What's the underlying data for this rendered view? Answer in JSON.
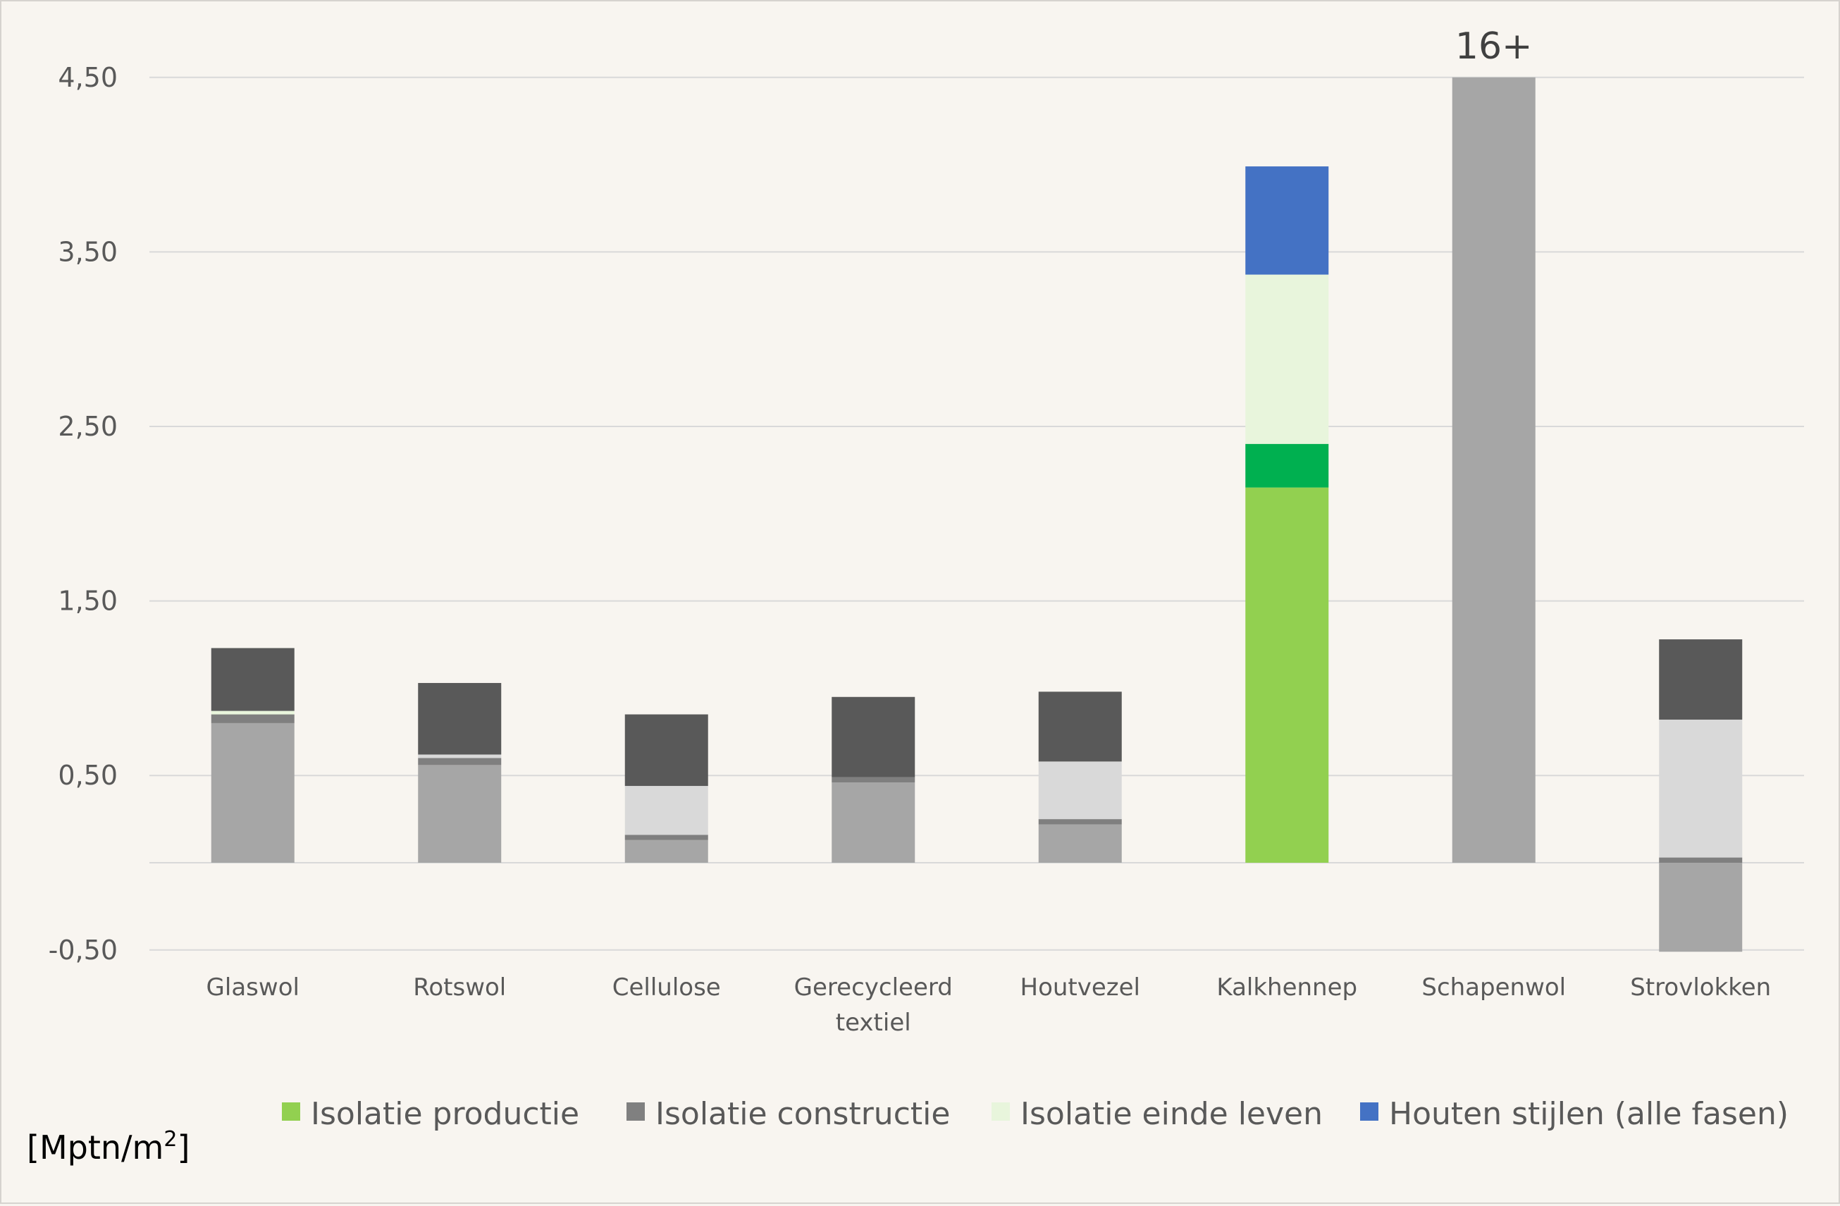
{
  "chart_data": {
    "type": "bar",
    "stacked": true,
    "unit_label": "[Mptn/m",
    "unit_superscript": "2",
    "unit_close": "]",
    "ylim": [
      -0.5,
      4.5
    ],
    "yticks": [
      "4,50",
      "3,50",
      "2,50",
      "1,50",
      "0,50",
      "-0,50"
    ],
    "ytick_values": [
      4.5,
      3.5,
      2.5,
      1.5,
      0.5,
      -0.5
    ],
    "grid": true,
    "legend_position": "bottom",
    "categories": [
      "Glaswol",
      "Rotswol",
      "Cellulose",
      "Gerecycleerd textiel",
      "Houtvezel",
      "Kalkhennep",
      "Schapenwol",
      "Strovlokken"
    ],
    "category_lines": [
      [
        "Glaswol"
      ],
      [
        "Rotswol"
      ],
      [
        "Cellulose"
      ],
      [
        "Gerecycleerd",
        "textiel"
      ],
      [
        "Houtvezel"
      ],
      [
        "Kalkhennep"
      ],
      [
        "Schapenwol"
      ],
      [
        "Strovlokken"
      ]
    ],
    "stacks": [
      [
        {
          "color": "#a6a6a6",
          "value": 0.8
        },
        {
          "color": "#7f7f7f",
          "value": 0.05
        },
        {
          "color": "#e8f5dc",
          "value": 0.02
        },
        {
          "color": "#595959",
          "value": 0.36
        }
      ],
      [
        {
          "color": "#a6a6a6",
          "value": 0.56
        },
        {
          "color": "#7f7f7f",
          "value": 0.04
        },
        {
          "color": "#d9d9d9",
          "value": 0.02
        },
        {
          "color": "#595959",
          "value": 0.41
        }
      ],
      [
        {
          "color": "#a6a6a6",
          "value": 0.13
        },
        {
          "color": "#7f7f7f",
          "value": 0.03
        },
        {
          "color": "#d9d9d9",
          "value": 0.28
        },
        {
          "color": "#595959",
          "value": 0.41
        }
      ],
      [
        {
          "color": "#a6a6a6",
          "value": 0.46
        },
        {
          "color": "#7f7f7f",
          "value": 0.03
        },
        {
          "color": "#d9d9d9",
          "value": 0.0
        },
        {
          "color": "#595959",
          "value": 0.46
        }
      ],
      [
        {
          "color": "#a6a6a6",
          "value": 0.22
        },
        {
          "color": "#7f7f7f",
          "value": 0.03
        },
        {
          "color": "#d9d9d9",
          "value": 0.33
        },
        {
          "color": "#595959",
          "value": 0.4
        }
      ],
      [
        {
          "color": "#92d050",
          "value": 2.15
        },
        {
          "color": "#00b050",
          "value": 0.25
        },
        {
          "color": "#e8f5dc",
          "value": 0.97
        },
        {
          "color": "#4472c4",
          "value": 0.62
        }
      ],
      [
        {
          "color": "#a6a6a6",
          "value": 4.5
        }
      ],
      [
        {
          "color": "#a6a6a6",
          "value": -0.51
        },
        {
          "color": "#7f7f7f",
          "value": 0.03
        },
        {
          "color": "#d9d9d9",
          "value": 0.79
        },
        {
          "color": "#595959",
          "value": 0.46
        }
      ]
    ],
    "overflow_label": {
      "category": "Schapenwol",
      "text": "16+"
    },
    "series": [
      {
        "name": "Isolatie productie",
        "color": "#92d050"
      },
      {
        "name": "Isolatie constructie",
        "color": "#808080"
      },
      {
        "name": "Isolatie einde leven",
        "color": "#e8f5dc"
      },
      {
        "name": "Houten stijlen (alle fasen)",
        "color": "#4472c4"
      }
    ]
  }
}
